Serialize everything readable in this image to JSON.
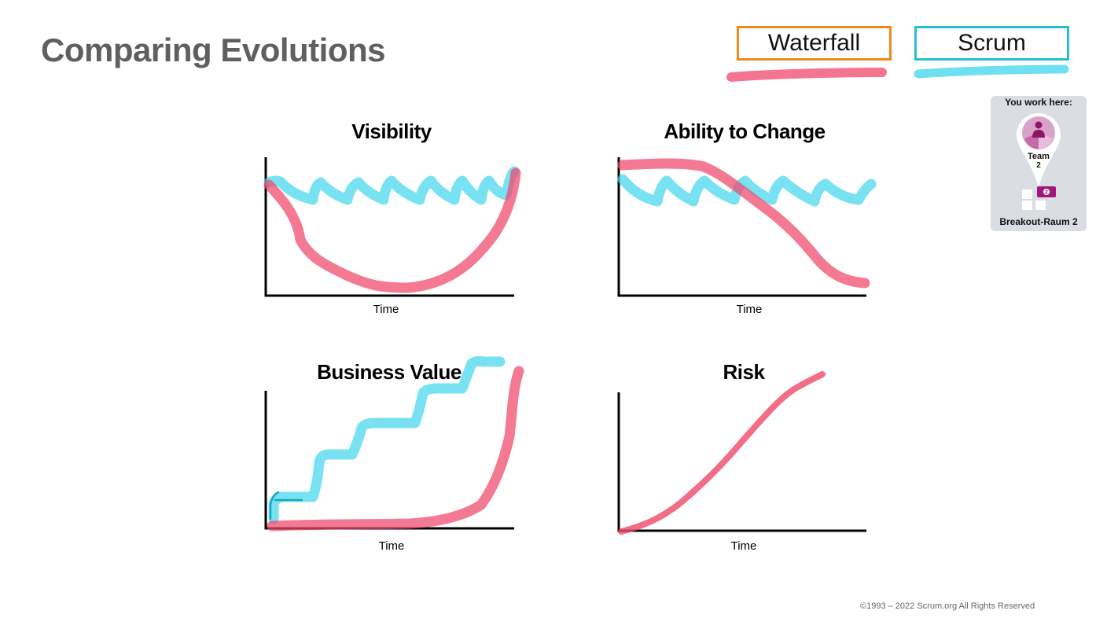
{
  "slide": {
    "title": "Comparing Evolutions",
    "footer": "©1993 – 2022 Scrum.org All Rights Reserved"
  },
  "legend": {
    "waterfall": {
      "label": "Waterfall",
      "border_color": "#ef8a1c",
      "stroke_color": "#f0476a"
    },
    "scrum": {
      "label": "Scrum",
      "border_color": "#22c1d1",
      "stroke_color": "#3fd6ee"
    }
  },
  "badge": {
    "heading": "You work here:",
    "team_label": "Team",
    "team_number": "2",
    "room_count": "2",
    "room_label": "Breakout-Raum 2",
    "accent_color": "#a2177c"
  },
  "charts": [
    {
      "title": "Visibility",
      "xlabel": "Time"
    },
    {
      "title": "Ability to Change",
      "xlabel": "Time"
    },
    {
      "title": "Business Value",
      "xlabel": "Time"
    },
    {
      "title": "Risk",
      "xlabel": "Time"
    }
  ]
}
